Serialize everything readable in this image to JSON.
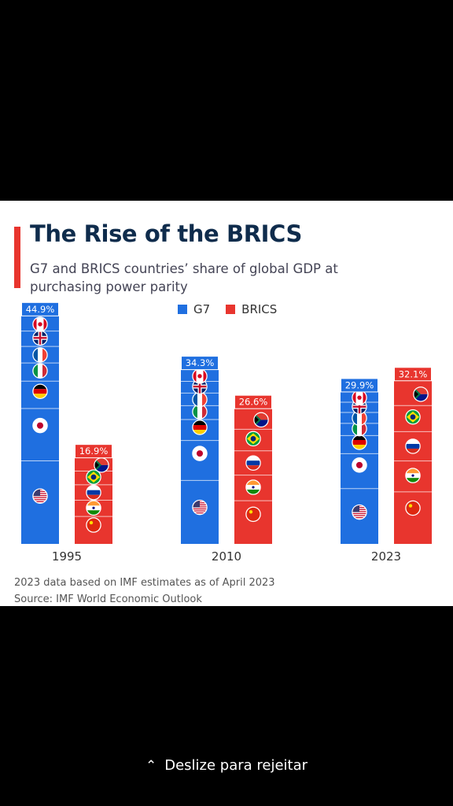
{
  "header": {
    "title": "The Rise of the BRICS",
    "subtitle": "G7 and BRICS countries’ share of global GDP at purchasing power parity"
  },
  "legend": [
    {
      "label": "G7",
      "color": "#1f6fe0"
    },
    {
      "label": "BRICS",
      "color": "#e8352e"
    }
  ],
  "footer": {
    "note": "2023 data based on IMF estimates as of April 2023",
    "source": "Source: IMF World Economic Outlook"
  },
  "swipe": {
    "icon": "chevron-up-icon",
    "label": "Deslize para rejeitar"
  },
  "chart_data": {
    "type": "bar",
    "categories": [
      "1995",
      "2010",
      "2023"
    ],
    "series": [
      {
        "name": "G7",
        "values": [
          44.9,
          34.3,
          29.9
        ],
        "labels": [
          "44.9%",
          "34.3%",
          "29.9%"
        ],
        "color": "#1f6fe0",
        "countries": [
          "United States",
          "Japan",
          "Germany",
          "Italy",
          "France",
          "United Kingdom",
          "Canada"
        ]
      },
      {
        "name": "BRICS",
        "values": [
          16.9,
          26.6,
          32.1
        ],
        "labels": [
          "16.9%",
          "26.6%",
          "32.1%"
        ],
        "color": "#e8352e",
        "countries": [
          "China",
          "India",
          "Russia",
          "Brazil",
          "South Africa"
        ]
      }
    ],
    "flag_icons": {
      "G7": [
        "us-flag-icon",
        "japan-flag-icon",
        "germany-flag-icon",
        "italy-flag-icon",
        "france-flag-icon",
        "uk-flag-icon",
        "canada-flag-icon"
      ],
      "BRICS": [
        "china-flag-icon",
        "india-flag-icon",
        "russia-flag-icon",
        "brazil-flag-icon",
        "south-africa-flag-icon"
      ]
    },
    "ylim": [
      0,
      50
    ],
    "grid": false,
    "legend_position": "top"
  }
}
